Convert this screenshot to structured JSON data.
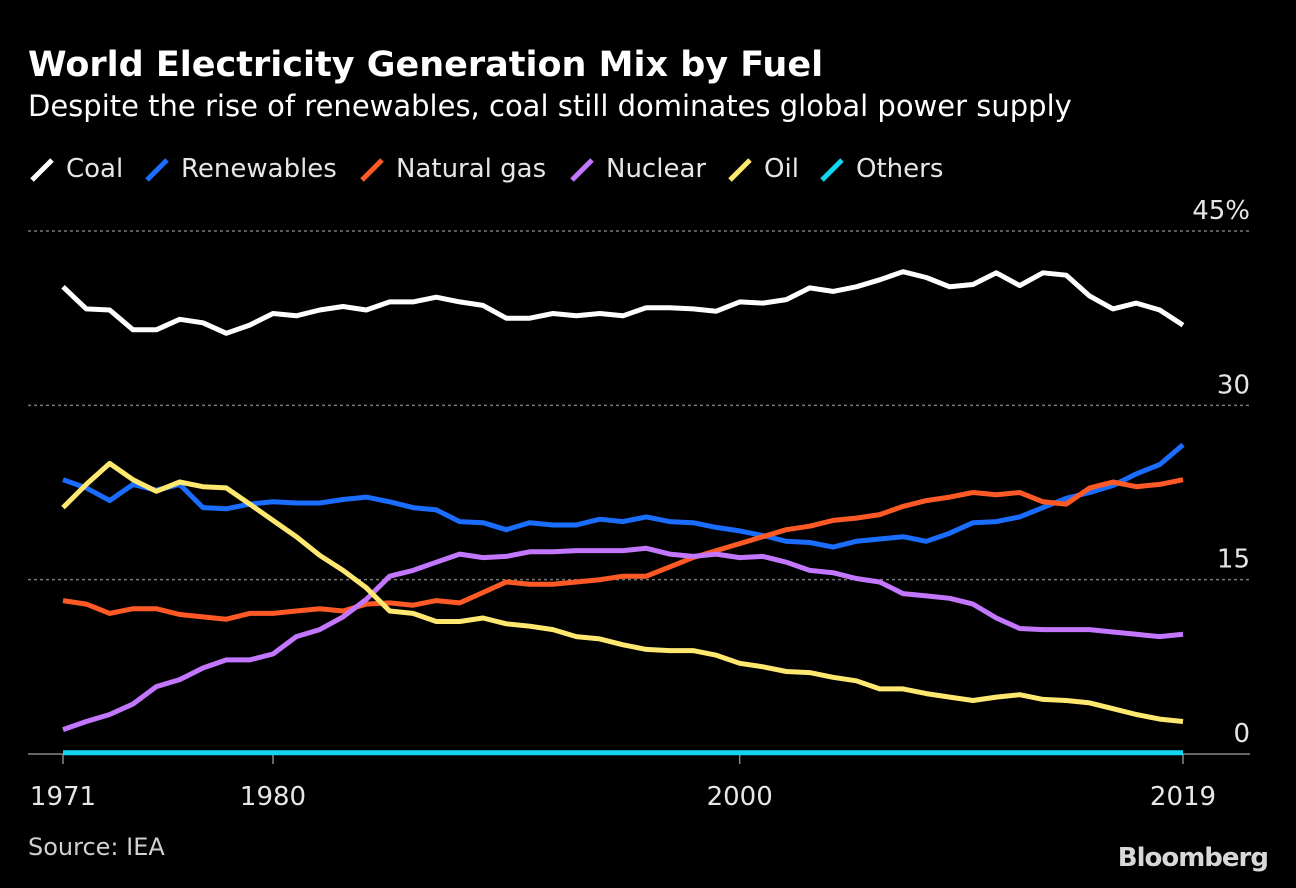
{
  "chart_data": {
    "type": "line",
    "title": "World Electricity Generation Mix by Fuel",
    "subtitle": "Despite the rise of renewables, coal still dominates global power supply",
    "xlabel": "",
    "ylabel": "",
    "xlim": [
      1971,
      2019
    ],
    "ylim": [
      0,
      45
    ],
    "y_ticks": [
      {
        "value": 0,
        "label": "0"
      },
      {
        "value": 15,
        "label": "15"
      },
      {
        "value": 30,
        "label": "30"
      },
      {
        "value": 45,
        "label": "45%"
      }
    ],
    "x_ticks": [
      {
        "value": 1971,
        "label": "1971"
      },
      {
        "value": 1980,
        "label": "1980"
      },
      {
        "value": 2000,
        "label": "2000"
      },
      {
        "value": 2019,
        "label": "2019"
      }
    ],
    "grid": true,
    "legend_position": "top-left",
    "x_start": 1971,
    "series": [
      {
        "name": "Coal",
        "color": "#ffffff",
        "values": [
          40.2,
          38.3,
          38.2,
          36.5,
          36.5,
          37.4,
          37.1,
          36.2,
          36.9,
          37.9,
          37.7,
          38.2,
          38.5,
          38.2,
          38.9,
          38.9,
          39.3,
          38.9,
          38.6,
          37.5,
          37.5,
          37.9,
          37.7,
          37.9,
          37.7,
          38.4,
          38.4,
          38.3,
          38.1,
          38.9,
          38.8,
          39.1,
          40.1,
          39.8,
          40.2,
          40.8,
          41.5,
          41.0,
          40.2,
          40.4,
          41.4,
          40.3,
          41.4,
          41.2,
          39.4,
          38.3,
          38.8,
          38.2,
          36.9
        ]
      },
      {
        "name": "Renewables",
        "color": "#1a6dff",
        "values": [
          23.6,
          22.9,
          21.8,
          23.2,
          22.7,
          23.2,
          21.2,
          21.1,
          21.5,
          21.7,
          21.6,
          21.6,
          21.9,
          22.1,
          21.7,
          21.2,
          21.0,
          20.0,
          19.9,
          19.3,
          19.9,
          19.7,
          19.7,
          20.2,
          20.0,
          20.4,
          20.0,
          19.9,
          19.5,
          19.2,
          18.8,
          18.3,
          18.2,
          17.8,
          18.3,
          18.5,
          18.7,
          18.3,
          19.0,
          19.9,
          20.0,
          20.4,
          21.2,
          22.0,
          22.5,
          23.1,
          24.1,
          24.9,
          26.6
        ]
      },
      {
        "name": "Natural gas",
        "color": "#ff5a26",
        "values": [
          13.2,
          12.9,
          12.1,
          12.5,
          12.5,
          12.0,
          11.8,
          11.6,
          12.1,
          12.1,
          12.3,
          12.5,
          12.3,
          12.9,
          13.0,
          12.8,
          13.2,
          13.0,
          13.9,
          14.8,
          14.6,
          14.6,
          14.8,
          15.0,
          15.3,
          15.3,
          16.1,
          16.9,
          17.5,
          18.1,
          18.7,
          19.3,
          19.6,
          20.1,
          20.3,
          20.6,
          21.3,
          21.8,
          22.1,
          22.5,
          22.3,
          22.5,
          21.7,
          21.5,
          22.9,
          23.4,
          23.0,
          23.2,
          23.6
        ]
      },
      {
        "name": "Nuclear",
        "color": "#c377ff",
        "values": [
          2.1,
          2.8,
          3.4,
          4.3,
          5.8,
          6.4,
          7.4,
          8.1,
          8.1,
          8.6,
          10.1,
          10.7,
          11.8,
          13.3,
          15.3,
          15.8,
          16.5,
          17.2,
          16.9,
          17.0,
          17.4,
          17.4,
          17.5,
          17.5,
          17.5,
          17.7,
          17.2,
          17.0,
          17.2,
          16.9,
          17.0,
          16.5,
          15.8,
          15.6,
          15.1,
          14.8,
          13.8,
          13.6,
          13.4,
          12.9,
          11.7,
          10.8,
          10.7,
          10.7,
          10.7,
          10.5,
          10.3,
          10.1,
          10.3
        ]
      },
      {
        "name": "Oil",
        "color": "#ffe870",
        "values": [
          21.2,
          23.2,
          25.0,
          23.6,
          22.6,
          23.4,
          23.0,
          22.9,
          21.5,
          20.1,
          18.7,
          17.1,
          15.8,
          14.3,
          12.3,
          12.1,
          11.4,
          11.4,
          11.7,
          11.2,
          11.0,
          10.7,
          10.1,
          9.9,
          9.4,
          9.0,
          8.9,
          8.9,
          8.5,
          7.8,
          7.5,
          7.1,
          7.0,
          6.6,
          6.3,
          5.6,
          5.6,
          5.2,
          4.9,
          4.6,
          4.9,
          5.1,
          4.7,
          4.6,
          4.4,
          3.9,
          3.4,
          3.0,
          2.8
        ]
      },
      {
        "name": "Others",
        "color": "#12d6ef",
        "values": [
          0.1,
          0.1,
          0.1,
          0.1,
          0.1,
          0.1,
          0.1,
          0.1,
          0.1,
          0.1,
          0.1,
          0.1,
          0.1,
          0.1,
          0.1,
          0.1,
          0.1,
          0.1,
          0.1,
          0.1,
          0.1,
          0.1,
          0.1,
          0.1,
          0.1,
          0.1,
          0.1,
          0.1,
          0.1,
          0.1,
          0.1,
          0.1,
          0.1,
          0.1,
          0.1,
          0.1,
          0.1,
          0.1,
          0.1,
          0.1,
          0.1,
          0.1,
          0.1,
          0.1,
          0.1,
          0.1,
          0.1,
          0.1,
          0.1
        ]
      }
    ],
    "source": "Source: IEA",
    "brand": "Bloomberg"
  }
}
